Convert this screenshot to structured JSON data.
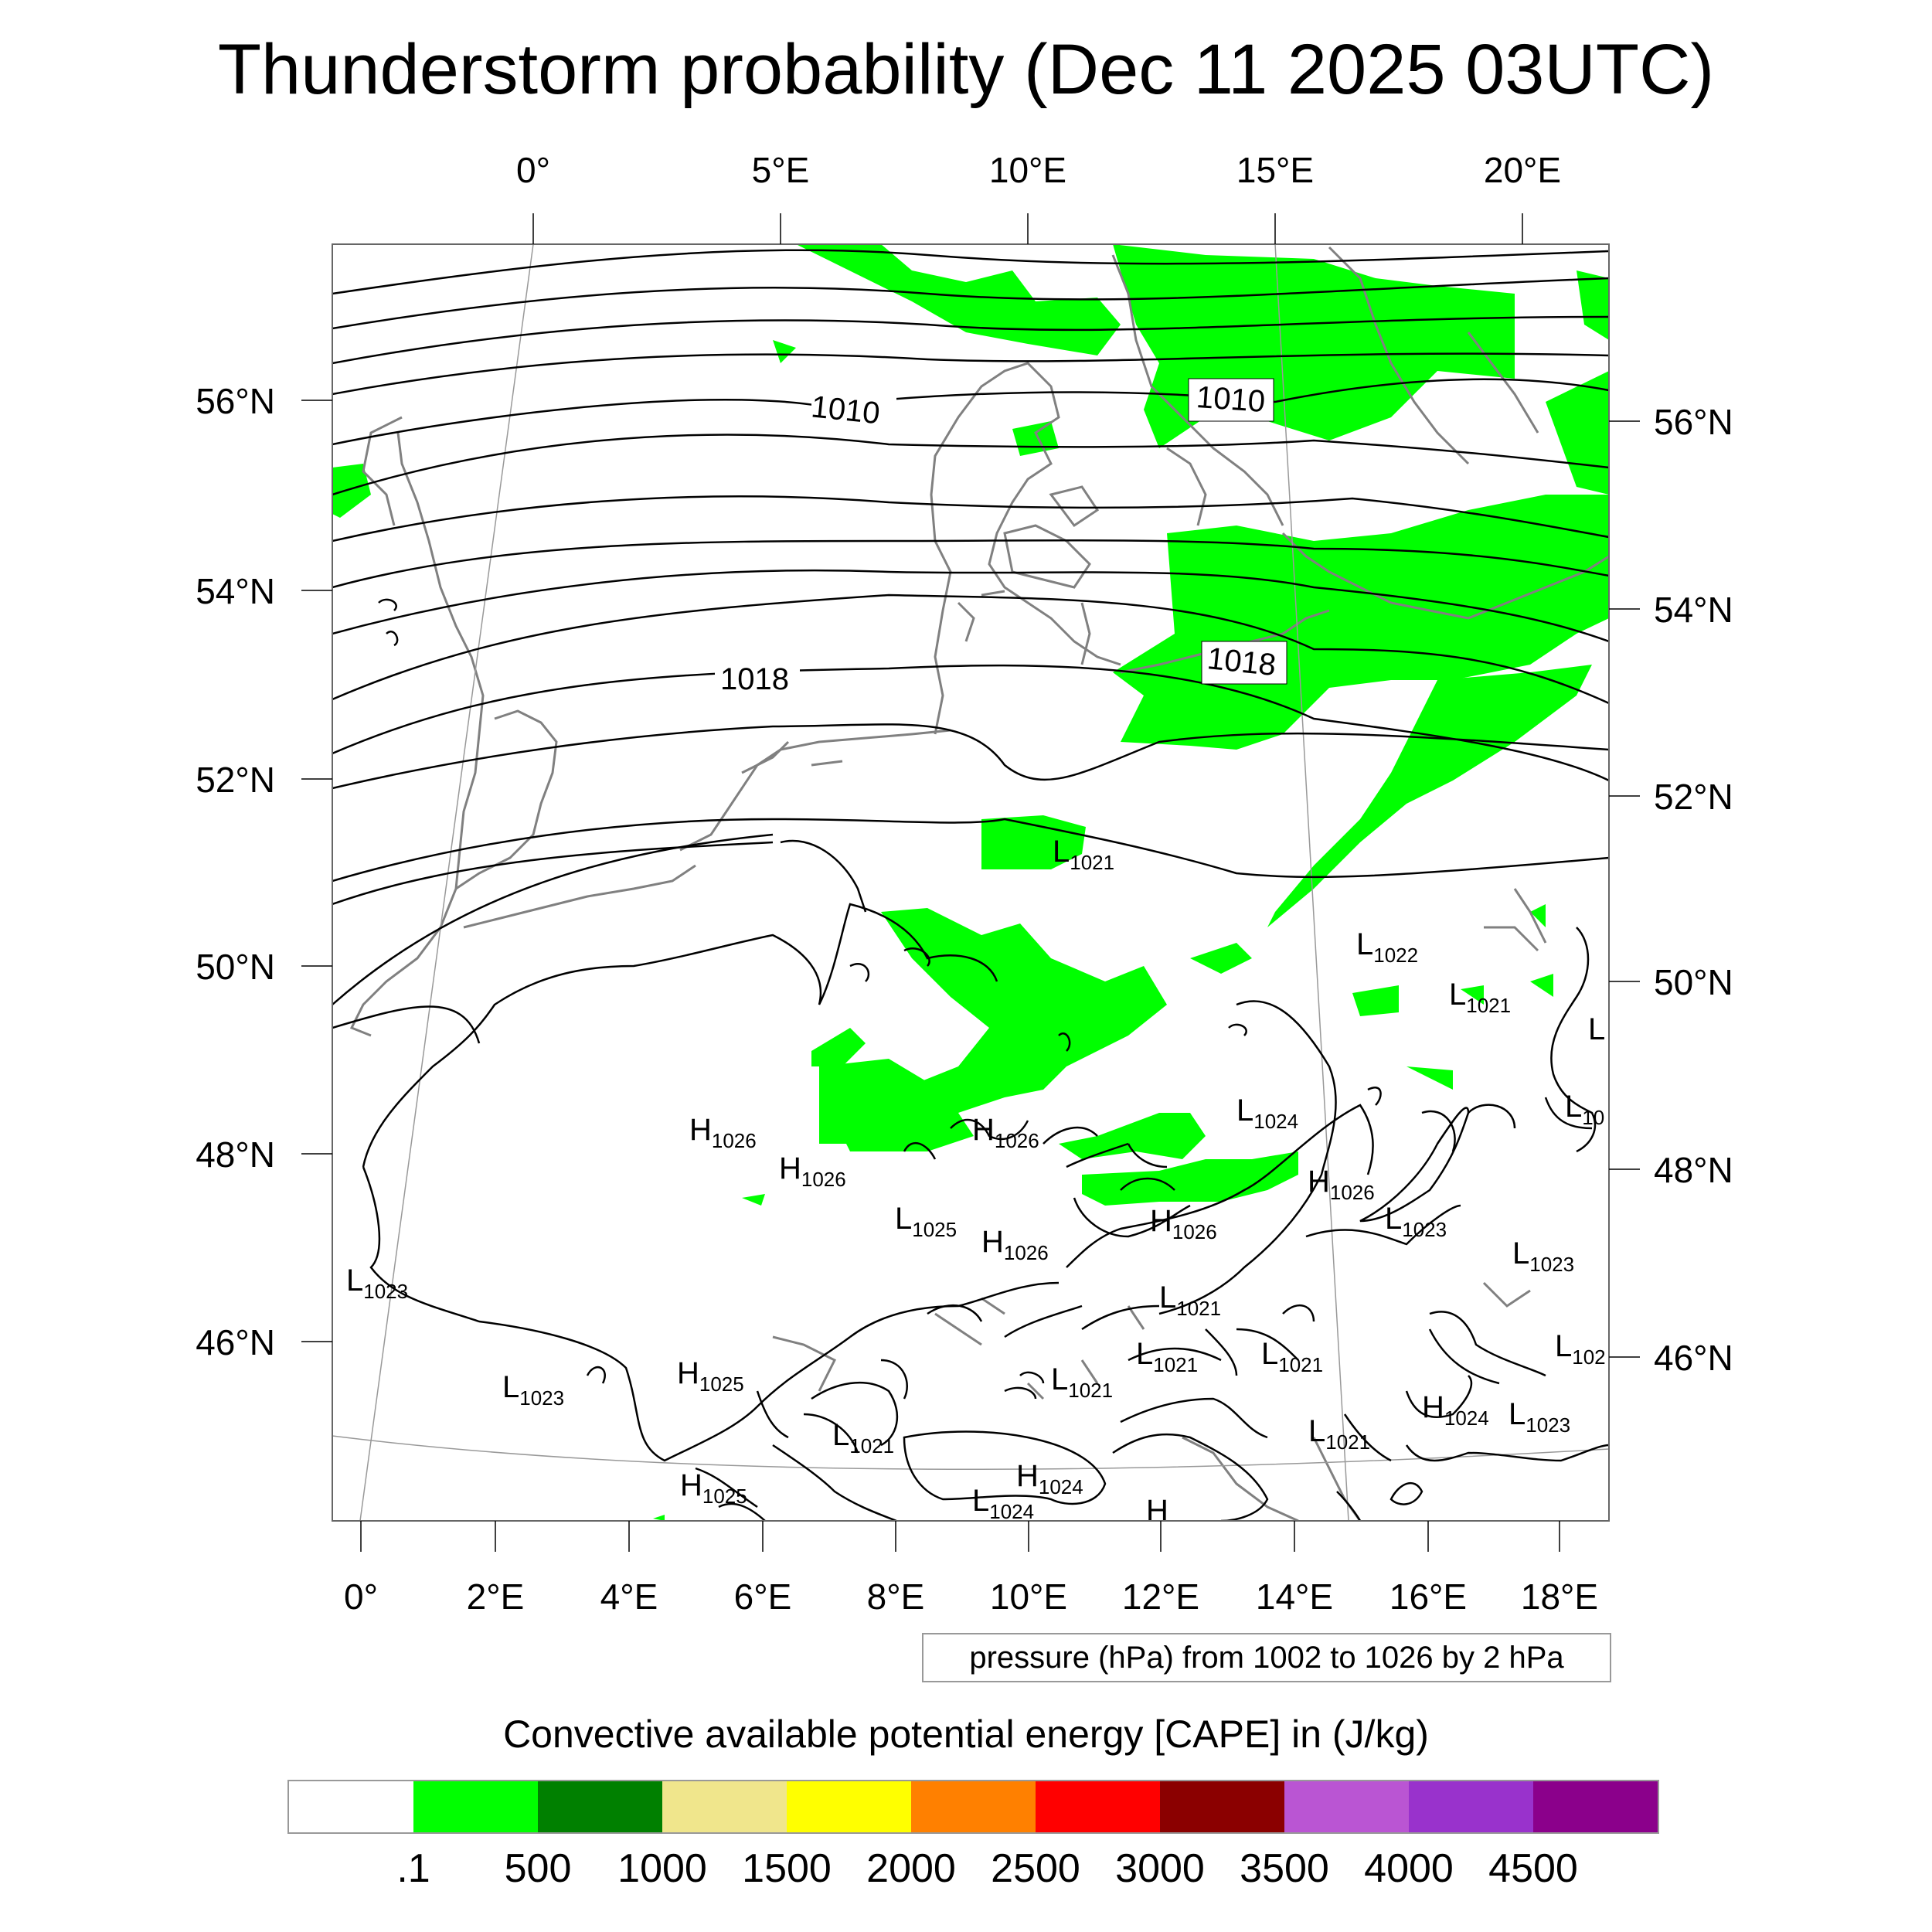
{
  "title": "Thunderstorm probability (Dec 11 2025 03UTC)",
  "map": {
    "top_lon_labels": [
      "0°",
      "5°E",
      "10°E",
      "15°E",
      "20°E"
    ],
    "bottom_lon_labels": [
      "0°",
      "2°E",
      "4°E",
      "6°E",
      "8°E",
      "10°E",
      "12°E",
      "14°E",
      "16°E",
      "18°E"
    ],
    "left_lat_labels": [
      "56°N",
      "54°N",
      "52°N",
      "50°N",
      "48°N",
      "46°N"
    ],
    "right_lat_labels": [
      "56°N",
      "54°N",
      "52°N",
      "50°N",
      "48°N",
      "46°N"
    ],
    "isobar_labels": [
      "1010",
      "1010",
      "1018",
      "1018"
    ],
    "pressure_centers": [
      {
        "letter": "L",
        "value": "1021"
      },
      {
        "letter": "L",
        "value": "1022"
      },
      {
        "letter": "L",
        "value": "1021"
      },
      {
        "letter": "L",
        "value": ""
      },
      {
        "letter": "L",
        "value": "10"
      },
      {
        "letter": "H",
        "value": "1026"
      },
      {
        "letter": "H",
        "value": "1026"
      },
      {
        "letter": "H",
        "value": "1026"
      },
      {
        "letter": "L",
        "value": "1024"
      },
      {
        "letter": "H",
        "value": "1026"
      },
      {
        "letter": "L",
        "value": "1025"
      },
      {
        "letter": "H",
        "value": "1026"
      },
      {
        "letter": "H",
        "value": "1026"
      },
      {
        "letter": "L",
        "value": "1023"
      },
      {
        "letter": "L",
        "value": "1023"
      },
      {
        "letter": "L",
        "value": "1023"
      },
      {
        "letter": "L",
        "value": "1021"
      },
      {
        "letter": "L",
        "value": "1021"
      },
      {
        "letter": "L",
        "value": "1021"
      },
      {
        "letter": "L",
        "value": "102"
      },
      {
        "letter": "L",
        "value": "1023"
      },
      {
        "letter": "H",
        "value": "1025"
      },
      {
        "letter": "L",
        "value": "1021"
      },
      {
        "letter": "H",
        "value": "1024"
      },
      {
        "letter": "L",
        "value": "1023"
      },
      {
        "letter": "L",
        "value": "1021"
      },
      {
        "letter": "L",
        "value": "1021"
      },
      {
        "letter": "H",
        "value": "1025"
      },
      {
        "letter": "H",
        "value": "1024"
      },
      {
        "letter": "L",
        "value": "1024"
      },
      {
        "letter": "H",
        "value": ""
      }
    ],
    "colors": {
      "cape_green": "#00ff00",
      "coast": "#808080",
      "isobar": "#000000",
      "grid": "#999999"
    }
  },
  "legend_text": "pressure (hPa) from 1002 to 1026 by 2 hPa",
  "colorbar": {
    "title": "Convective available potential energy [CAPE] in (J/kg)",
    "colors": [
      "#ffffff",
      "#00ff00",
      "#008000",
      "#f0e68c",
      "#ffff00",
      "#ff8000",
      "#ff0000",
      "#8b0000",
      "#ba55d3",
      "#9932cc",
      "#8b008b"
    ],
    "labels": [
      ".1",
      "500",
      "1000",
      "1500",
      "2000",
      "2500",
      "3000",
      "3500",
      "4000",
      "4500"
    ]
  }
}
